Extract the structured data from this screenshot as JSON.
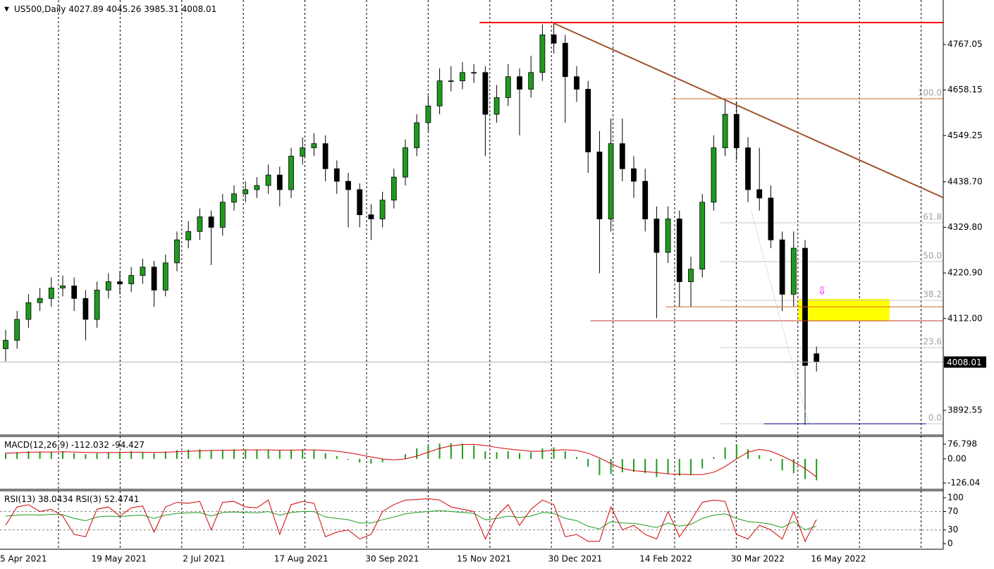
{
  "chart_data": [
    {
      "type": "candlestick",
      "symbol": "US500,Daily",
      "categories": [
        "5 Apr 2021",
        null,
        null,
        null,
        null,
        null,
        null,
        null,
        "19 May 2021",
        null,
        null,
        null,
        null,
        null,
        null,
        null,
        "2 Jul 2021",
        null,
        null,
        null,
        null,
        null,
        null,
        null,
        "17 Aug 2021",
        null,
        null,
        null,
        null,
        null,
        null,
        null,
        "30 Sep 2021",
        null,
        null,
        null,
        null,
        null,
        null,
        null,
        "15 Nov 2021",
        null,
        null,
        null,
        null,
        null,
        null,
        null,
        "30 Dec 2021",
        null,
        null,
        null,
        null,
        null,
        null,
        null,
        "14 Feb 2022",
        null,
        null,
        null,
        null,
        null,
        null,
        null,
        "30 Mar 2022",
        null,
        null,
        null,
        null,
        null,
        null,
        "16 May 2022"
      ],
      "open": [
        4040,
        4060,
        4110,
        4150,
        4160,
        4185,
        4190,
        4160,
        4110,
        4180,
        4200,
        4195,
        4215,
        4235,
        4180,
        4245,
        4300,
        4320,
        4355,
        4330,
        4390,
        4410,
        4420,
        4430,
        4455,
        4420,
        4500,
        4520,
        4530,
        4470,
        4440,
        4420,
        4360,
        4350,
        4395,
        4450,
        4520,
        4580,
        4620,
        4680,
        4680,
        4700,
        4700,
        4600,
        4640,
        4690,
        4660,
        4700,
        4790,
        4770,
        4690,
        4660,
        4510,
        4350,
        4530,
        4470,
        4440,
        4350,
        4270,
        4350,
        4200,
        4230,
        4390,
        4520,
        4600,
        4520,
        4420,
        4400,
        4300,
        4170,
        4280,
        4027.89
      ],
      "high": [
        4085,
        4130,
        4170,
        4185,
        4210,
        4215,
        4210,
        4180,
        4200,
        4220,
        4225,
        4235,
        4255,
        4250,
        4265,
        4320,
        4345,
        4375,
        4370,
        4410,
        4430,
        4440,
        4450,
        4480,
        4475,
        4520,
        4545,
        4555,
        4550,
        4490,
        4460,
        4435,
        4385,
        4415,
        4470,
        4540,
        4600,
        4645,
        4710,
        4715,
        4725,
        4720,
        4715,
        4670,
        4720,
        4710,
        4740,
        4815,
        4818,
        4790,
        4715,
        4680,
        4560,
        4590,
        4590,
        4500,
        4470,
        4380,
        4380,
        4370,
        4260,
        4410,
        4550,
        4637,
        4630,
        4545,
        4520,
        4430,
        4320,
        4320,
        4300,
        4045.26
      ],
      "low": [
        4010,
        4040,
        4090,
        4130,
        4140,
        4165,
        4130,
        4060,
        4090,
        4160,
        4170,
        4175,
        4195,
        4140,
        4165,
        4225,
        4280,
        4300,
        4240,
        4310,
        4370,
        4390,
        4400,
        4410,
        4380,
        4400,
        4480,
        4500,
        4440,
        4410,
        4330,
        4330,
        4300,
        4330,
        4375,
        4430,
        4500,
        4560,
        4600,
        4655,
        4660,
        4675,
        4500,
        4580,
        4620,
        4550,
        4640,
        4680,
        4745,
        4580,
        4630,
        4460,
        4220,
        4320,
        4440,
        4400,
        4320,
        4113,
        4245,
        4140,
        4140,
        4210,
        4370,
        4500,
        4490,
        4390,
        4370,
        4280,
        4130,
        4140,
        3858,
        3985.31
      ],
      "close": [
        4060,
        4110,
        4150,
        4160,
        4185,
        4190,
        4160,
        4110,
        4180,
        4200,
        4195,
        4215,
        4235,
        4180,
        4245,
        4300,
        4320,
        4355,
        4330,
        4390,
        4410,
        4420,
        4430,
        4455,
        4420,
        4500,
        4520,
        4530,
        4470,
        4440,
        4420,
        4360,
        4350,
        4395,
        4450,
        4520,
        4580,
        4620,
        4680,
        4680,
        4700,
        4700,
        4600,
        4640,
        4690,
        4660,
        4700,
        4790,
        4770,
        4690,
        4660,
        4510,
        4350,
        4530,
        4470,
        4440,
        4350,
        4270,
        4350,
        4200,
        4230,
        4390,
        4520,
        4600,
        4520,
        4420,
        4400,
        4300,
        4170,
        4280,
        4000,
        4008.01
      ],
      "up_color": "#1f9a1f",
      "down_color": "#000000",
      "ylim": [
        3835.3,
        4873.2
      ],
      "yticks": [
        3892.55,
        {
          "value": 4112,
          "label": "4112.00"
        },
        {
          "value": 4220.9,
          "label": "4220.90"
        },
        {
          "value": 4329.8,
          "label": "4329.80"
        },
        {
          "value": 4438.7,
          "label": "4438.70"
        },
        4549.25,
        4658.15,
        4767.05
      ],
      "lines": [
        {
          "price": 4819.3,
          "from": 41.5,
          "to": 82.1,
          "color": "#ff0000",
          "width": 2
        },
        {
          "price": 4637.3,
          "from": 58.3,
          "to": 82.1,
          "color": "#d2691e",
          "width": 1
        },
        {
          "price": 4140,
          "from": 57.8,
          "to": 82.1,
          "color": "#d2691e",
          "width": 1
        },
        {
          "price": 4106.6,
          "from": 51.2,
          "to": 82.1,
          "color": "#c0392b",
          "width": 1
        },
        {
          "price": 3860.5,
          "from": 66.4,
          "to": 80.6,
          "color": "#000080",
          "width": 1
        }
      ],
      "trendlines": [
        {
          "from": [
            48,
            4817.6
          ],
          "to": [
            82.1,
            4401
          ],
          "color": "#a0522d",
          "width": 2,
          "dash": false
        },
        {
          "from": [
            65.3,
            4367
          ],
          "to": [
            70.3,
            3862
          ],
          "color": "#9ad0e0",
          "width": 1,
          "dash": true
        }
      ],
      "fibonacci": {
        "from": 62.6,
        "to": 82.1,
        "color": "#c8c8c8",
        "label_color": "#a0a0a0",
        "levels": [
          {
            "label": "100.0",
            "price": 4637.3
          },
          {
            "label": "61.8",
            "price": 4340.8
          },
          {
            "label": "50.0",
            "price": 4248.1
          },
          {
            "label": "38.2",
            "price": 4155.4
          },
          {
            "label": "23.6",
            "price": 4042.5
          },
          {
            "label": "0.0",
            "price": 3860.5
          }
        ]
      },
      "zones": [
        {
          "from": 69.4,
          "to": 77.4,
          "top": 4158.8,
          "bottom": 4106.6,
          "color": "#ffff00"
        }
      ]
    },
    {
      "type": "macd",
      "name": "MACD(12,26,9)",
      "histogram": {
        "color": "#1f9a1f",
        "values": [
          30,
          35,
          40,
          38,
          36,
          40,
          30,
          25,
          30,
          35,
          38,
          40,
          36,
          30,
          38,
          45,
          48,
          50,
          46,
          48,
          50,
          48,
          46,
          47,
          44,
          48,
          50,
          45,
          30,
          15,
          -5,
          -20,
          -25,
          -18,
          0,
          25,
          55,
          70,
          80,
          82,
          78,
          70,
          40,
          35,
          40,
          30,
          35,
          55,
          60,
          40,
          10,
          -40,
          -85,
          -80,
          -70,
          -68,
          -75,
          -95,
          -80,
          -88,
          -85,
          -50,
          10,
          60,
          75,
          50,
          20,
          -10,
          -60,
          -75,
          -105,
          -112.032
        ]
      },
      "signal": {
        "color": "#d00000",
        "values": [
          30,
          32,
          35,
          36,
          36,
          37,
          36,
          34,
          33,
          33,
          34,
          35,
          35,
          34,
          35,
          37,
          40,
          42,
          44,
          45,
          46,
          47,
          47,
          47,
          46,
          46,
          47,
          47,
          45,
          40,
          32,
          22,
          10,
          0,
          -5,
          0,
          15,
          35,
          55,
          68,
          75,
          76,
          70,
          60,
          52,
          46,
          40,
          40,
          45,
          48,
          44,
          30,
          5,
          -25,
          -50,
          -62,
          -66,
          -72,
          -78,
          -80,
          -82,
          -82,
          -70,
          -40,
          0,
          35,
          50,
          40,
          15,
          -15,
          -50,
          -94.427
        ]
      },
      "ylim": [
        -155.5,
        113.7
      ],
      "yticks": [
        -126.04,
        {
          "value": 0,
          "label": "0.00"
        },
        76.798
      ]
    },
    {
      "type": "line",
      "series": [
        {
          "name": "RSI(13)",
          "color": "#1f9a1f",
          "values": [
            60,
            62,
            63,
            62,
            64,
            63,
            55,
            50,
            58,
            60,
            59,
            61,
            62,
            55,
            62,
            66,
            67,
            68,
            60,
            68,
            69,
            68,
            67,
            70,
            62,
            68,
            70,
            70,
            58,
            55,
            52,
            45,
            45,
            52,
            58,
            65,
            68,
            70,
            72,
            70,
            68,
            66,
            52,
            55,
            60,
            57,
            60,
            68,
            66,
            55,
            50,
            38,
            32,
            48,
            45,
            44,
            40,
            35,
            45,
            38,
            42,
            55,
            62,
            65,
            55,
            48,
            46,
            42,
            35,
            48,
            30,
            38.0434
          ]
        },
        {
          "name": "RSI(3)",
          "color": "#d00000",
          "values": [
            40,
            80,
            85,
            70,
            75,
            60,
            20,
            15,
            75,
            80,
            60,
            78,
            82,
            25,
            80,
            90,
            88,
            92,
            30,
            90,
            92,
            80,
            78,
            95,
            20,
            85,
            92,
            88,
            15,
            25,
            30,
            10,
            20,
            70,
            85,
            95,
            96,
            98,
            95,
            80,
            75,
            70,
            10,
            60,
            85,
            40,
            75,
            95,
            85,
            15,
            20,
            5,
            5,
            80,
            30,
            40,
            20,
            10,
            70,
            15,
            50,
            90,
            95,
            92,
            20,
            10,
            40,
            30,
            10,
            70,
            5,
            52.4741
          ]
        }
      ],
      "ylim": [
        -10.8,
        113.8
      ],
      "yticks": [
        0,
        30,
        70,
        100
      ],
      "levels": [
        30,
        70
      ]
    }
  ]
}
